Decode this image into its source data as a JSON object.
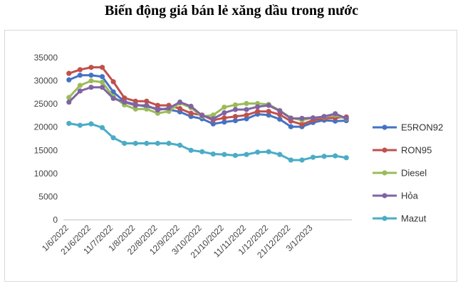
{
  "title": "Biến động giá bán lẻ xăng dầu trong nước",
  "chart_data": {
    "type": "line",
    "title": "Biến động giá bán lẻ xăng dầu trong nước",
    "xlabel": "",
    "ylabel": "",
    "ylim": [
      0,
      35000
    ],
    "yticks": [
      "0",
      "5000",
      "10000",
      "15000",
      "20000",
      "25000",
      "30000",
      "35000"
    ],
    "grid": false,
    "legend_position": "right",
    "x": [
      "1/6/2022",
      "11/6/2022",
      "21/6/2022",
      "1/7/2022",
      "11/7/2022",
      "21/7/2022",
      "1/8/2022",
      "11/8/2022",
      "22/8/2022",
      "1/9/2022",
      "12/9/2022",
      "21/9/2022",
      "3/10/2022",
      "11/10/2022",
      "21/10/2022",
      "1/11/2022",
      "11/11/2022",
      "21/11/2022",
      "1/12/2022",
      "11/12/2022",
      "21/12/2022",
      "1/1/2023",
      "3/1/2023",
      "11/1/2023",
      "21/1/2023",
      "1/2/2023"
    ],
    "x_tick_labels": [
      "1/6/2022",
      "21/6/2022",
      "11/7/2022",
      "1/8/2022",
      "22/8/2022",
      "12/9/2022",
      "3/10/2022",
      "21/10/2022",
      "11/11/2022",
      "1/12/2022",
      "21/12/2022",
      "3/1/2023"
    ],
    "x_tick_index": [
      0,
      2,
      4,
      6,
      8,
      10,
      12,
      14,
      16,
      18,
      20,
      22
    ],
    "series": [
      {
        "name": "E5RON92",
        "color": "#4472c4",
        "values": [
          30200,
          31200,
          31200,
          30900,
          27600,
          25500,
          24900,
          24400,
          24000,
          23800,
          23300,
          22300,
          21800,
          20700,
          21100,
          21400,
          21800,
          22800,
          22600,
          21700,
          20100,
          20100,
          21000,
          21500,
          21300,
          21400
        ]
      },
      {
        "name": "RON95",
        "color": "#c0504d",
        "values": [
          31600,
          32400,
          32900,
          32900,
          29800,
          26300,
          25600,
          25600,
          24700,
          24700,
          24000,
          23000,
          22600,
          21500,
          22000,
          22300,
          22600,
          23400,
          23400,
          22700,
          21300,
          20600,
          21500,
          21900,
          22000,
          22200
        ]
      },
      {
        "name": "Diesel",
        "color": "#9bbb59",
        "values": [
          26400,
          29000,
          30000,
          29700,
          26600,
          24800,
          23900,
          23900,
          23000,
          23400,
          25200,
          24200,
          22300,
          22600,
          24300,
          24800,
          25100,
          25100,
          24900,
          23600,
          22000,
          21500,
          22000,
          22200,
          22600,
          21800
        ]
      },
      {
        "name": "Hỏa",
        "color": "#8064a2",
        "values": [
          25400,
          27800,
          28600,
          28600,
          26200,
          25400,
          24700,
          24700,
          23700,
          24100,
          25400,
          24500,
          22500,
          21800,
          23100,
          23800,
          23800,
          24400,
          24700,
          23500,
          21900,
          21900,
          22000,
          22300,
          22900,
          21900
        ]
      },
      {
        "name": "Mazut",
        "color": "#4bacc6",
        "values": [
          20800,
          20400,
          20700,
          19900,
          17700,
          16500,
          16500,
          16500,
          16500,
          16500,
          16100,
          15000,
          14700,
          14200,
          14100,
          13900,
          14100,
          14600,
          14700,
          14100,
          12900,
          12900,
          13500,
          13700,
          13800,
          13400
        ]
      }
    ]
  }
}
